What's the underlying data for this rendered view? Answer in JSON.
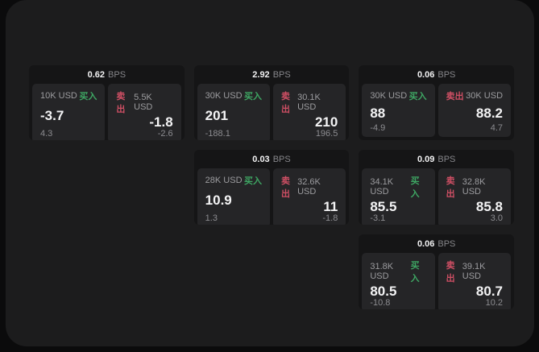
{
  "labels": {
    "buy": "买入",
    "sell": "卖出",
    "bps": "BPS"
  },
  "colors": {
    "page_background": "#0b0b0c",
    "panel_background": "#1c1c1d",
    "card_background": "#151516",
    "tile_background": "#252527",
    "buy_green": "#3ea663",
    "sell_red": "#cf4f64",
    "text_primary": "#f4f4f5",
    "text_secondary": "#9c9c9f"
  },
  "cards": [
    {
      "bps": "0.62",
      "buy": {
        "amount": "10K USD",
        "price": "-3.7",
        "delta": "4.3"
      },
      "sell": {
        "amount": "5.5K USD",
        "price": "-1.8",
        "delta": "-2.6"
      }
    },
    {
      "bps": "2.92",
      "buy": {
        "amount": "30K USD",
        "price": "201",
        "delta": "-188.1"
      },
      "sell": {
        "amount": "30.1K USD",
        "price": "210",
        "delta": "196.5"
      }
    },
    {
      "bps": "0.06",
      "buy": {
        "amount": "30K USD",
        "price": "88",
        "delta": "-4.9"
      },
      "sell": {
        "amount": "30K USD",
        "price": "88.2",
        "delta": "4.7"
      }
    },
    {
      "bps": "0.03",
      "buy": {
        "amount": "28K USD",
        "price": "10.9",
        "delta": "1.3"
      },
      "sell": {
        "amount": "32.6K USD",
        "price": "11",
        "delta": "-1.8"
      }
    },
    {
      "bps": "0.09",
      "buy": {
        "amount": "34.1K USD",
        "price": "85.5",
        "delta": "-3.1"
      },
      "sell": {
        "amount": "32.8K USD",
        "price": "85.8",
        "delta": "3.0"
      }
    },
    {
      "bps": "0.06",
      "buy": {
        "amount": "31.8K USD",
        "price": "80.5",
        "delta": "-10.8"
      },
      "sell": {
        "amount": "39.1K USD",
        "price": "80.7",
        "delta": "10.2"
      }
    }
  ]
}
